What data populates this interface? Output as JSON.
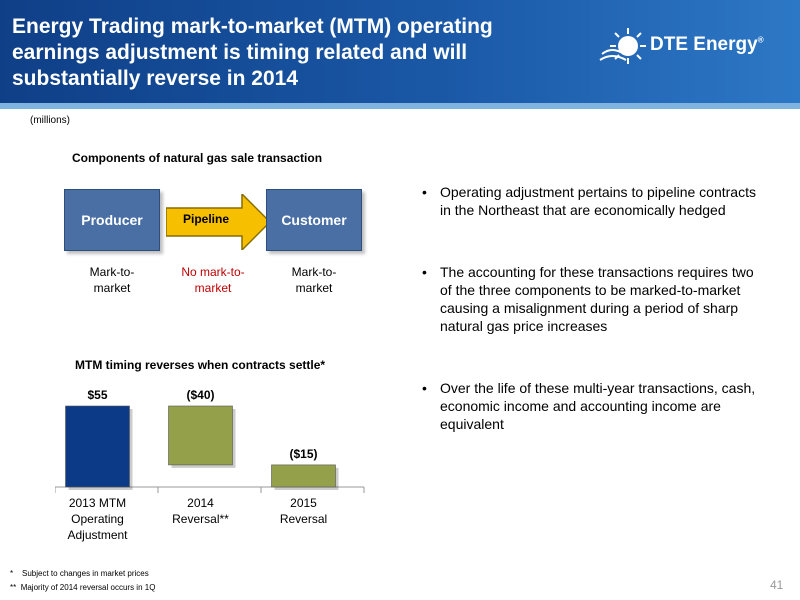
{
  "header": {
    "title_lines": [
      "Energy Trading mark-to-market (MTM) operating",
      "earnings adjustment is timing related and will",
      "substantially reverse in 2014"
    ],
    "logo_text": "DTE Energy",
    "logo_mark": "®"
  },
  "units_label": "(millions)",
  "flow": {
    "title": "Components of natural gas sale transaction",
    "producer": "Producer",
    "pipeline": "Pipeline",
    "customer": "Customer",
    "producer_note": [
      "Mark-to-",
      "market"
    ],
    "pipeline_note": [
      "No mark-to-",
      "market"
    ],
    "customer_note": [
      "Mark-to-",
      "market"
    ]
  },
  "chart_data": {
    "type": "bar",
    "title": "MTM timing reverses when contracts settle*",
    "categories": [
      [
        "2013 MTM",
        "Operating",
        "Adjustment"
      ],
      [
        "2014",
        "Reversal**"
      ],
      [
        "2015",
        "Reversal"
      ]
    ],
    "values": [
      55,
      -40,
      -15
    ],
    "data_labels": [
      "$55",
      "($40)",
      "($15)"
    ],
    "style": "waterfall",
    "ylim": [
      0,
      55
    ],
    "colors": [
      "#0d3a86",
      "#95a04a",
      "#95a04a"
    ],
    "grid": false,
    "legend": "none"
  },
  "bullets": [
    "Operating adjustment pertains to pipeline contracts in the Northeast that are economically hedged",
    "The accounting for these transactions requires two of the three components to be marked-to-market causing a misalignment during a period of sharp natural gas price increases",
    "Over the life of these multi-year transactions, cash, economic income and accounting income are equivalent"
  ],
  "bullet_char": "•",
  "footnotes": [
    {
      "mark": "*",
      "text": "Subject to changes in market prices"
    },
    {
      "mark": "**",
      "text": "Majority of 2014 reversal occurs in 1Q"
    }
  ],
  "page_number": "41"
}
